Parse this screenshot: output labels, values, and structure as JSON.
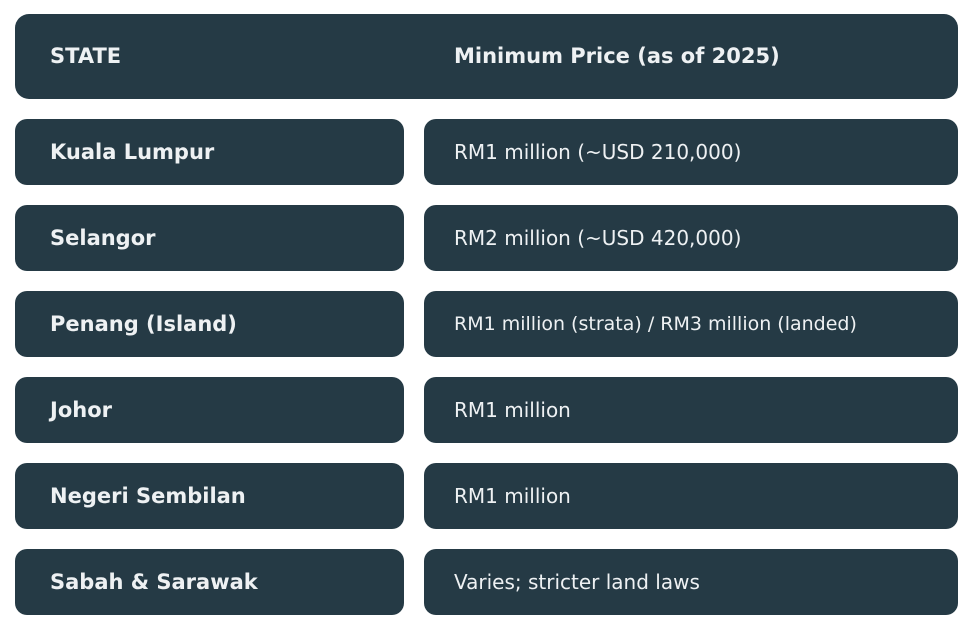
{
  "table": {
    "headers": {
      "state": "STATE",
      "price": "Minimum Price (as of 2025)"
    },
    "rows": [
      {
        "state": "Kuala Lumpur",
        "price": "RM1 million (~USD 210,000)"
      },
      {
        "state": "Selangor",
        "price": "RM2 million (~USD 420,000)"
      },
      {
        "state": "Penang (Island)",
        "price": "RM1 million (strata) / RM3 million (landed)"
      },
      {
        "state": "Johor",
        "price": "RM1 million"
      },
      {
        "state": "Negeri Sembilan",
        "price": "RM1 million"
      },
      {
        "state": "Sabah & Sarawak",
        "price": "Varies; stricter land laws"
      }
    ]
  },
  "colors": {
    "cell_background": "#253a45",
    "text": "#eef1f3",
    "page_background": "#ffffff"
  }
}
